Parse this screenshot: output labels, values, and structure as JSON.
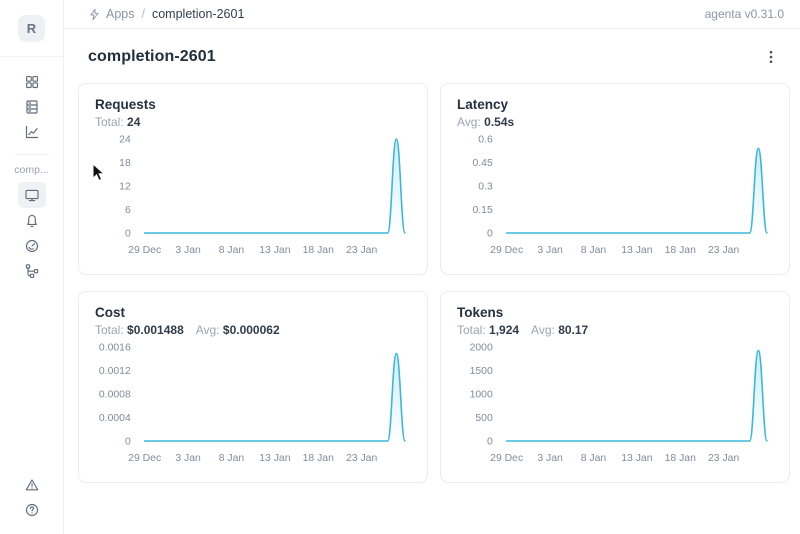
{
  "app": {
    "version_label": "agenta v0.31.0"
  },
  "breadcrumb": {
    "icon": "thunderbolt-icon",
    "items": [
      "Apps",
      "completion-2601"
    ],
    "separator": "/"
  },
  "sidebar": {
    "avatar_letter": "R",
    "section_label": "comp...",
    "top_icons": [
      "grid-icon",
      "database-icon",
      "line-chart-icon"
    ],
    "app_icons": [
      "monitor-icon",
      "bell-icon",
      "gauge-icon",
      "tree-branch-icon"
    ],
    "selected_icon": "monitor-icon",
    "bottom_icons": [
      "warning-triangle-icon",
      "question-circle-icon"
    ]
  },
  "page": {
    "title": "completion-2601",
    "menu_icon": "more-vertical-icon"
  },
  "theme": {
    "accent": "#3bb8d8",
    "text_dark": "#26313f",
    "text_gray": "#9aa4b1",
    "border": "#e9edf1"
  },
  "chart_data": [
    {
      "type": "area",
      "title": "Requests",
      "stats": [
        {
          "label": "Total:",
          "value": "24"
        }
      ],
      "x": [
        "29 Dec",
        "30 Dec",
        "31 Dec",
        "1 Jan",
        "2 Jan",
        "3 Jan",
        "4 Jan",
        "5 Jan",
        "6 Jan",
        "7 Jan",
        "8 Jan",
        "9 Jan",
        "10 Jan",
        "11 Jan",
        "12 Jan",
        "13 Jan",
        "14 Jan",
        "15 Jan",
        "16 Jan",
        "17 Jan",
        "18 Jan",
        "19 Jan",
        "20 Jan",
        "21 Jan",
        "22 Jan",
        "23 Jan",
        "24 Jan",
        "25 Jan",
        "26 Jan",
        "27 Jan",
        "28 Jan"
      ],
      "values": [
        0,
        0,
        0,
        0,
        0,
        0,
        0,
        0,
        0,
        0,
        0,
        0,
        0,
        0,
        0,
        0,
        0,
        0,
        0,
        0,
        0,
        0,
        0,
        0,
        0,
        0,
        0,
        0,
        0,
        24,
        0
      ],
      "ylim": [
        0,
        24
      ],
      "ytick_labels": [
        "24",
        "18",
        "12",
        "6",
        "0"
      ],
      "xtick_indices": [
        0,
        5,
        10,
        15,
        20,
        25
      ],
      "xtick_labels": [
        "29 Dec",
        "3 Jan",
        "8 Jan",
        "13 Jan",
        "18 Jan",
        "23 Jan"
      ],
      "grid": false,
      "legend": false
    },
    {
      "type": "area",
      "title": "Latency",
      "stats": [
        {
          "label": "Avg:",
          "value": "0.54s"
        }
      ],
      "x": [
        "29 Dec",
        "30 Dec",
        "31 Dec",
        "1 Jan",
        "2 Jan",
        "3 Jan",
        "4 Jan",
        "5 Jan",
        "6 Jan",
        "7 Jan",
        "8 Jan",
        "9 Jan",
        "10 Jan",
        "11 Jan",
        "12 Jan",
        "13 Jan",
        "14 Jan",
        "15 Jan",
        "16 Jan",
        "17 Jan",
        "18 Jan",
        "19 Jan",
        "20 Jan",
        "21 Jan",
        "22 Jan",
        "23 Jan",
        "24 Jan",
        "25 Jan",
        "26 Jan",
        "27 Jan",
        "28 Jan"
      ],
      "values": [
        0,
        0,
        0,
        0,
        0,
        0,
        0,
        0,
        0,
        0,
        0,
        0,
        0,
        0,
        0,
        0,
        0,
        0,
        0,
        0,
        0,
        0,
        0,
        0,
        0,
        0,
        0,
        0,
        0,
        0.54,
        0
      ],
      "ylim": [
        0,
        0.6
      ],
      "ytick_labels": [
        "0.6",
        "0.45",
        "0.3",
        "0.15",
        "0"
      ],
      "xtick_indices": [
        0,
        5,
        10,
        15,
        20,
        25
      ],
      "xtick_labels": [
        "29 Dec",
        "3 Jan",
        "8 Jan",
        "13 Jan",
        "18 Jan",
        "23 Jan"
      ],
      "grid": false,
      "legend": false
    },
    {
      "type": "area",
      "title": "Cost",
      "stats": [
        {
          "label": "Total:",
          "value": "$0.001488"
        },
        {
          "label": "Avg:",
          "value": "$0.000062"
        }
      ],
      "x": [
        "29 Dec",
        "30 Dec",
        "31 Dec",
        "1 Jan",
        "2 Jan",
        "3 Jan",
        "4 Jan",
        "5 Jan",
        "6 Jan",
        "7 Jan",
        "8 Jan",
        "9 Jan",
        "10 Jan",
        "11 Jan",
        "12 Jan",
        "13 Jan",
        "14 Jan",
        "15 Jan",
        "16 Jan",
        "17 Jan",
        "18 Jan",
        "19 Jan",
        "20 Jan",
        "21 Jan",
        "22 Jan",
        "23 Jan",
        "24 Jan",
        "25 Jan",
        "26 Jan",
        "27 Jan",
        "28 Jan"
      ],
      "values": [
        0,
        0,
        0,
        0,
        0,
        0,
        0,
        0,
        0,
        0,
        0,
        0,
        0,
        0,
        0,
        0,
        0,
        0,
        0,
        0,
        0,
        0,
        0,
        0,
        0,
        0,
        0,
        0,
        0,
        0.001488,
        0
      ],
      "ylim": [
        0,
        0.0016
      ],
      "ytick_labels": [
        "0.0016",
        "0.0012",
        "0.0008",
        "0.0004",
        "0"
      ],
      "xtick_indices": [
        0,
        5,
        10,
        15,
        20,
        25
      ],
      "xtick_labels": [
        "29 Dec",
        "3 Jan",
        "8 Jan",
        "13 Jan",
        "18 Jan",
        "23 Jan"
      ],
      "grid": false,
      "legend": false
    },
    {
      "type": "area",
      "title": "Tokens",
      "stats": [
        {
          "label": "Total:",
          "value": "1,924"
        },
        {
          "label": "Avg:",
          "value": "80.17"
        }
      ],
      "x": [
        "29 Dec",
        "30 Dec",
        "31 Dec",
        "1 Jan",
        "2 Jan",
        "3 Jan",
        "4 Jan",
        "5 Jan",
        "6 Jan",
        "7 Jan",
        "8 Jan",
        "9 Jan",
        "10 Jan",
        "11 Jan",
        "12 Jan",
        "13 Jan",
        "14 Jan",
        "15 Jan",
        "16 Jan",
        "17 Jan",
        "18 Jan",
        "19 Jan",
        "20 Jan",
        "21 Jan",
        "22 Jan",
        "23 Jan",
        "24 Jan",
        "25 Jan",
        "26 Jan",
        "27 Jan",
        "28 Jan"
      ],
      "values": [
        0,
        0,
        0,
        0,
        0,
        0,
        0,
        0,
        0,
        0,
        0,
        0,
        0,
        0,
        0,
        0,
        0,
        0,
        0,
        0,
        0,
        0,
        0,
        0,
        0,
        0,
        0,
        0,
        0,
        1924,
        0
      ],
      "ylim": [
        0,
        2000
      ],
      "ytick_labels": [
        "2000",
        "1500",
        "1000",
        "500",
        "0"
      ],
      "xtick_indices": [
        0,
        5,
        10,
        15,
        20,
        25
      ],
      "xtick_labels": [
        "29 Dec",
        "3 Jan",
        "8 Jan",
        "13 Jan",
        "18 Jan",
        "23 Jan"
      ],
      "grid": false,
      "legend": false
    }
  ]
}
